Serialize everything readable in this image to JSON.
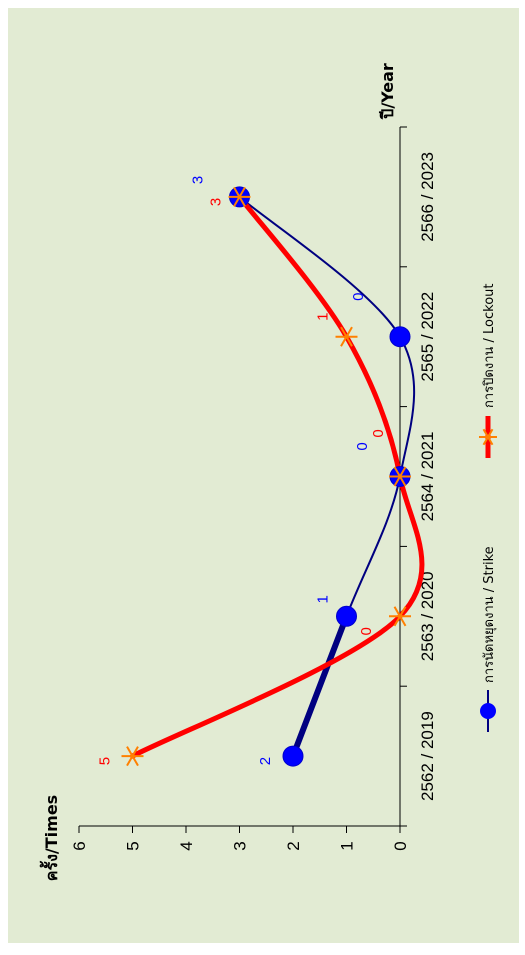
{
  "chart_data": {
    "type": "line",
    "orientation": "rotated-90-counterclockwise",
    "categories": [
      "2562 / 2019",
      "2563 / 2020",
      "2564 / 2021",
      "2565 / 2022",
      "2566 / 2023"
    ],
    "ylabel": "ครั้ง/Times",
    "xlabel": "ปี/Year",
    "ylim": [
      0,
      6
    ],
    "y_ticks": [
      "0",
      "1",
      "2",
      "3",
      "4",
      "5",
      "6"
    ],
    "grid": false,
    "legend_position": "bottom",
    "series": [
      {
        "name": "การนัดหยุดงาน / Strike",
        "values": [
          2,
          1,
          0,
          0,
          3
        ],
        "labels": [
          "2",
          "1",
          "0",
          "0",
          "3"
        ],
        "color": "#000080",
        "marker_color": "#0000ff",
        "marker": "circle"
      },
      {
        "name": "การปิดงาน / Lockout",
        "values": [
          5,
          0,
          0,
          1,
          3
        ],
        "labels": [
          "5",
          "0",
          "0",
          "1",
          "3"
        ],
        "color": "#ff0000",
        "marker_color": "#ff8000",
        "marker": "star"
      }
    ]
  }
}
